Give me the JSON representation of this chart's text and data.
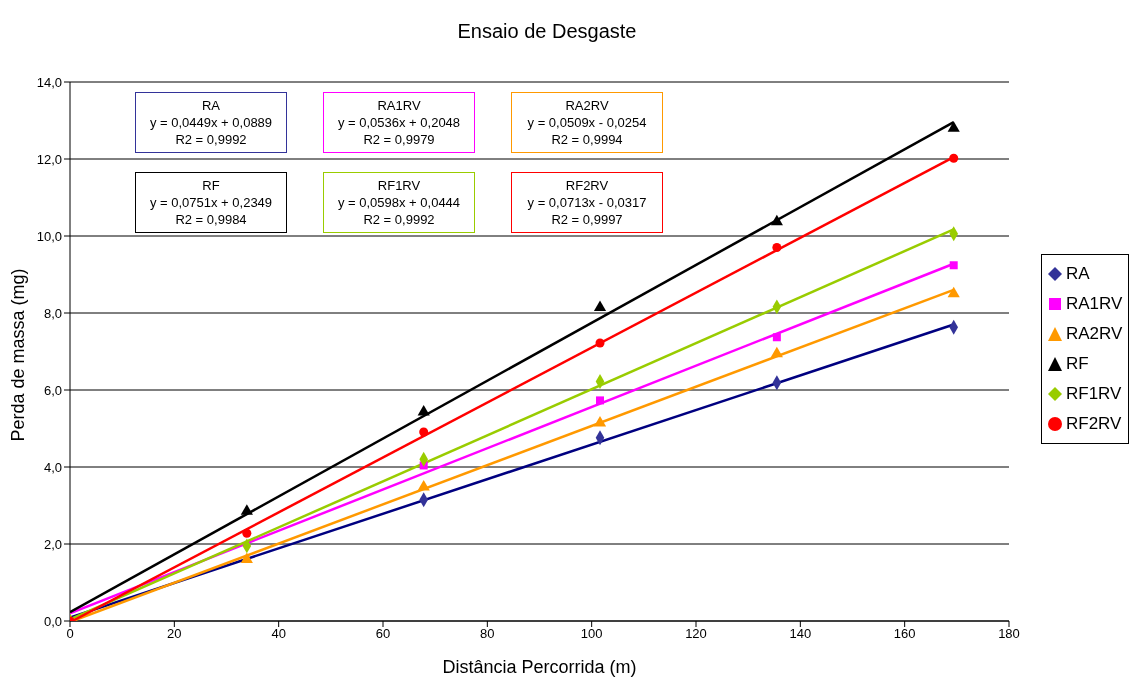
{
  "chart_data": {
    "type": "scatter",
    "title": "Ensaio de Desgaste",
    "xlabel": "Distância Percorrida (m)",
    "ylabel": "Perda de massa (mg)",
    "xlim": [
      0,
      180
    ],
    "xticks": [
      0,
      20,
      40,
      60,
      80,
      100,
      120,
      140,
      160,
      180
    ],
    "ylim": [
      0,
      14
    ],
    "yticks": [
      {
        "value": 0,
        "label": "0,0"
      },
      {
        "value": 2,
        "label": "2,0"
      },
      {
        "value": 4,
        "label": "4,0"
      },
      {
        "value": 6,
        "label": "6,0"
      },
      {
        "value": 8,
        "label": "8,0"
      },
      {
        "value": 10,
        "label": "10,0"
      },
      {
        "value": 12,
        "label": "12,0"
      },
      {
        "value": 14,
        "label": "14,0"
      }
    ],
    "grid": "y",
    "legend": "right",
    "x": [
      0,
      33.9,
      67.8,
      101.6,
      135.5,
      169.4
    ],
    "series": [
      {
        "name": "RA",
        "color": "#333399",
        "marker": "diamond",
        "values": [
          null,
          null,
          3.15,
          4.76,
          6.19,
          7.63
        ]
      },
      {
        "name": "RA1RV",
        "color": "#ff00ff",
        "marker": "square",
        "values": [
          null,
          null,
          4.04,
          5.73,
          7.37,
          9.24
        ]
      },
      {
        "name": "RA2RV",
        "color": "#ff9900",
        "marker": "triangle",
        "values": [
          null,
          1.6,
          3.48,
          5.14,
          6.94,
          8.5
        ]
      },
      {
        "name": "RF",
        "color": "#000000",
        "marker": "triangle",
        "values": [
          null,
          2.85,
          5.43,
          8.14,
          10.37,
          12.8
        ]
      },
      {
        "name": "RF1RV",
        "color": "#99cc00",
        "marker": "diamond",
        "values": [
          0,
          1.95,
          4.2,
          6.22,
          8.16,
          10.06
        ]
      },
      {
        "name": "RF2RV",
        "color": "#ff0000",
        "marker": "circle",
        "values": [
          0,
          2.28,
          4.91,
          7.22,
          9.7,
          12.02
        ]
      },
      {
        "type": "line",
        "color": "#000080",
        "x": [
          0,
          169.4
        ],
        "values": [
          0.09,
          7.7
        ]
      },
      {
        "type": "line",
        "color": "#ff00ff",
        "x": [
          0,
          169.4
        ],
        "values": [
          0.2,
          9.28
        ]
      },
      {
        "type": "line",
        "color": "#ff9900",
        "x": [
          0.5,
          169.4
        ],
        "values": [
          0,
          8.6
        ]
      },
      {
        "type": "line",
        "color": "#000000",
        "x": [
          0,
          169.4
        ],
        "values": [
          0.23,
          12.96
        ]
      },
      {
        "type": "line",
        "color": "#99cc00",
        "x": [
          0,
          169.4
        ],
        "values": [
          0.04,
          10.17
        ]
      },
      {
        "type": "line",
        "color": "#ff0000",
        "x": [
          0.44,
          169.4
        ],
        "values": [
          0,
          12.05
        ]
      }
    ],
    "annotations": [
      "RA\ny = 0,0449x + 0,0889\nR2 = 0,9992",
      "RA1RV\ny = 0,0536x + 0,2048\nR2 = 0,9979",
      "RA2RV\ny = 0,0509x - 0,0254\nR2 = 0,9994",
      "RF\ny = 0,0751x + 0,2349\nR2 = 0,9984",
      "RF1RV\ny = 0,0598x + 0,0444\nR2 = 0,9992",
      "RF2RV\ny = 0,0713x - 0,0317\nR2 = 0,9997"
    ]
  }
}
